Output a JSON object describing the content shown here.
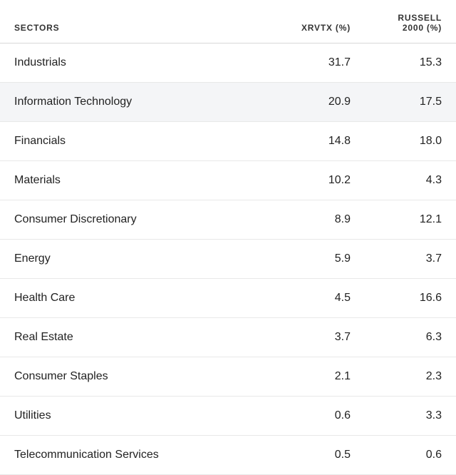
{
  "table": {
    "type": "table",
    "background_color": "#ffffff",
    "highlight_row_index": 1,
    "highlight_color": "#f4f5f7",
    "border_color": "#e8e8e8",
    "header_border_color": "#d8d8d8",
    "header_fontsize": 12,
    "header_font_weight": 700,
    "header_letter_spacing": 0.8,
    "body_fontsize": 16,
    "text_color": "#222222",
    "columns": [
      {
        "label": "SECTORS",
        "align": "left",
        "width_pct": 60
      },
      {
        "label": "XRVTX (%)",
        "align": "right",
        "width_pct": 20
      },
      {
        "label": "RUSSELL 2000 (%)",
        "align": "right",
        "width_pct": 20
      }
    ],
    "rows": [
      {
        "sector": "Industrials",
        "xrvtx": "31.7",
        "russell": "15.3"
      },
      {
        "sector": "Information Technology",
        "xrvtx": "20.9",
        "russell": "17.5"
      },
      {
        "sector": "Financials",
        "xrvtx": "14.8",
        "russell": "18.0"
      },
      {
        "sector": "Materials",
        "xrvtx": "10.2",
        "russell": "4.3"
      },
      {
        "sector": "Consumer Discretionary",
        "xrvtx": "8.9",
        "russell": "12.1"
      },
      {
        "sector": "Energy",
        "xrvtx": "5.9",
        "russell": "3.7"
      },
      {
        "sector": "Health Care",
        "xrvtx": "4.5",
        "russell": "16.6"
      },
      {
        "sector": "Real Estate",
        "xrvtx": "3.7",
        "russell": "6.3"
      },
      {
        "sector": "Consumer Staples",
        "xrvtx": "2.1",
        "russell": "2.3"
      },
      {
        "sector": "Utilities",
        "xrvtx": "0.6",
        "russell": "3.3"
      },
      {
        "sector": "Telecommunication Services",
        "xrvtx": "0.5",
        "russell": "0.6"
      }
    ]
  }
}
